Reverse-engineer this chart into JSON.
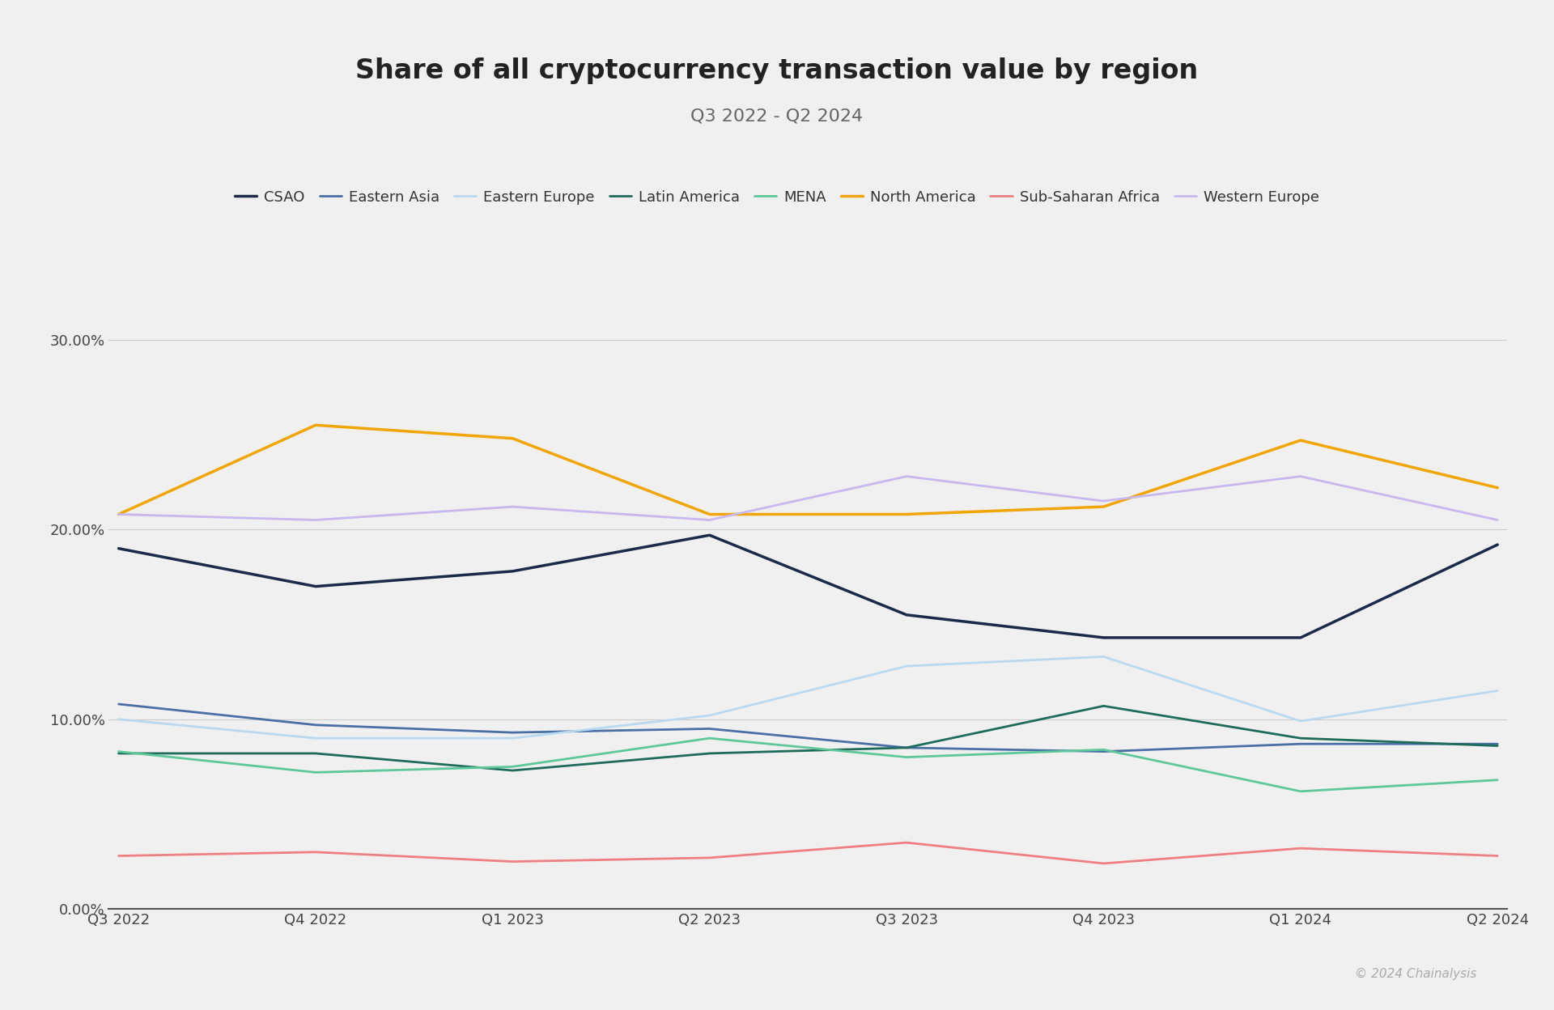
{
  "title": "Share of all cryptocurrency transaction value by region",
  "subtitle": "Q3 2022 - Q2 2024",
  "copyright": "© 2024 Chainalysis",
  "quarters": [
    "Q3 2022",
    "Q4 2022",
    "Q1 2023",
    "Q2 2023",
    "Q3 2023",
    "Q4 2023",
    "Q1 2024",
    "Q2 2024"
  ],
  "series": [
    {
      "name": "CSAO",
      "color": "#1b2a4a",
      "linewidth": 2.5,
      "values": [
        0.19,
        0.17,
        0.178,
        0.197,
        0.155,
        0.143,
        0.143,
        0.192
      ]
    },
    {
      "name": "Eastern Asia",
      "color": "#4a6fa5",
      "linewidth": 2.0,
      "values": [
        0.108,
        0.097,
        0.093,
        0.095,
        0.085,
        0.083,
        0.087,
        0.087
      ]
    },
    {
      "name": "Eastern Europe",
      "color": "#b8daf0",
      "linewidth": 2.0,
      "values": [
        0.1,
        0.09,
        0.09,
        0.102,
        0.128,
        0.133,
        0.099,
        0.115
      ]
    },
    {
      "name": "Latin America",
      "color": "#1e6b5a",
      "linewidth": 2.0,
      "values": [
        0.082,
        0.082,
        0.073,
        0.082,
        0.085,
        0.107,
        0.09,
        0.086
      ]
    },
    {
      "name": "MENA",
      "color": "#5ec89a",
      "linewidth": 2.0,
      "values": [
        0.083,
        0.072,
        0.075,
        0.09,
        0.08,
        0.084,
        0.062,
        0.068
      ]
    },
    {
      "name": "North America",
      "color": "#f0a500",
      "linewidth": 2.5,
      "values": [
        0.208,
        0.255,
        0.248,
        0.208,
        0.208,
        0.212,
        0.247,
        0.222
      ]
    },
    {
      "name": "Sub-Saharan Africa",
      "color": "#f08080",
      "linewidth": 2.0,
      "values": [
        0.028,
        0.03,
        0.025,
        0.027,
        0.035,
        0.024,
        0.032,
        0.028
      ]
    },
    {
      "name": "Western Europe",
      "color": "#c9b8f0",
      "linewidth": 2.0,
      "values": [
        0.208,
        0.205,
        0.212,
        0.205,
        0.228,
        0.215,
        0.228,
        0.205
      ]
    }
  ],
  "ylim": [
    0.0,
    0.33
  ],
  "yticks": [
    0.0,
    0.1,
    0.2,
    0.3
  ],
  "ytick_labels": [
    "0.00%",
    "10.00%",
    "20.00%",
    "30.00%"
  ],
  "background_color": "#f0f0f0",
  "grid_color": "#cccccc",
  "title_fontsize": 24,
  "subtitle_fontsize": 16,
  "axis_fontsize": 13,
  "legend_fontsize": 13
}
